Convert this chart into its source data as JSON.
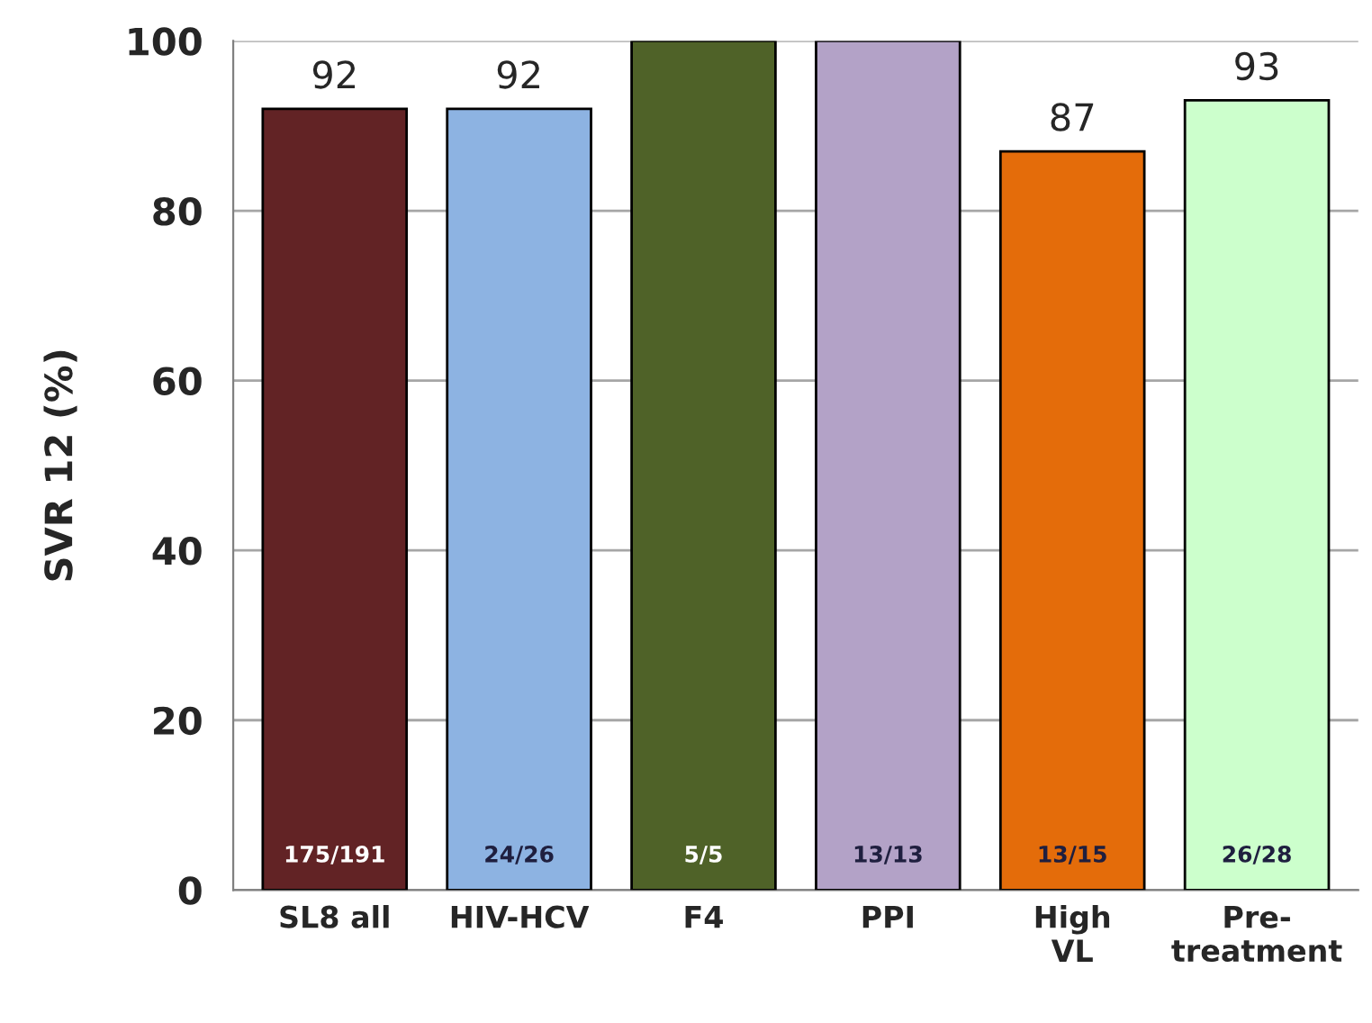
{
  "chart_data": {
    "type": "bar",
    "ylabel": "SVR 12 (%)",
    "categories": [
      "SL8 all",
      "HIV-HCV",
      "F4",
      "PPI",
      "High\nVL",
      "Pre-\ntreatment"
    ],
    "values": [
      92,
      92,
      100,
      100,
      87,
      93
    ],
    "colors": [
      "#622325",
      "#8db3e2",
      "#4f6228",
      "#b3a2c7",
      "#e46c0a",
      "#ccffcc"
    ],
    "value_labels": [
      "92",
      "92",
      null,
      null,
      "87",
      "93"
    ],
    "annotations": [
      "175/191",
      "24/26",
      "5/5",
      "13/13",
      "13/15",
      "26/28"
    ],
    "ylim": [
      0,
      100
    ],
    "yticks": [
      0,
      20,
      40,
      60,
      80,
      100
    ],
    "grid": "y",
    "legend": false
  }
}
